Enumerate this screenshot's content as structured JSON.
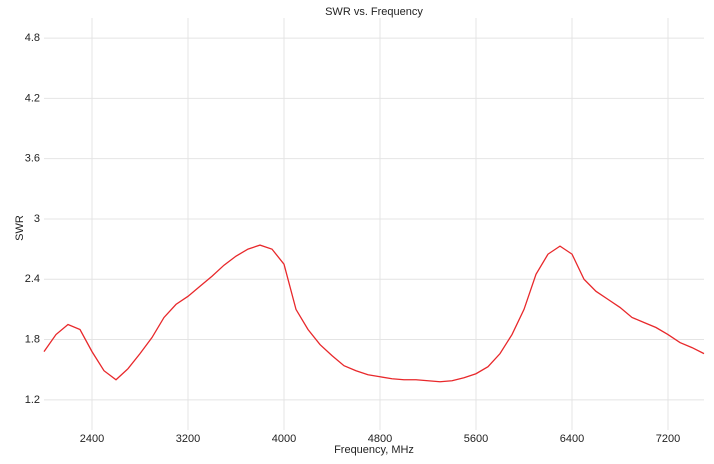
{
  "chart_data": {
    "type": "line",
    "title": "SWR vs. Frequency",
    "x_label": "Frequency, MHz",
    "y_label": "SWR",
    "x": [
      2000,
      2100,
      2200,
      2300,
      2400,
      2500,
      2600,
      2700,
      2800,
      2900,
      3000,
      3100,
      3200,
      3300,
      3400,
      3500,
      3600,
      3700,
      3800,
      3900,
      4000,
      4100,
      4200,
      4300,
      4400,
      4500,
      4600,
      4700,
      4800,
      4900,
      5000,
      5100,
      5200,
      5300,
      5400,
      5500,
      5600,
      5700,
      5800,
      5900,
      6000,
      6100,
      6200,
      6300,
      6400,
      6500,
      6600,
      6700,
      6800,
      6900,
      7000,
      7100,
      7200,
      7300,
      7400,
      7500
    ],
    "series": [
      {
        "name": "SWR",
        "color": "#e8282b",
        "values": [
          1.68,
          1.85,
          1.95,
          1.9,
          1.68,
          1.49,
          1.4,
          1.51,
          1.66,
          1.82,
          2.02,
          2.15,
          2.23,
          2.33,
          2.43,
          2.54,
          2.63,
          2.7,
          2.74,
          2.7,
          2.55,
          2.1,
          1.9,
          1.75,
          1.64,
          1.54,
          1.49,
          1.45,
          1.43,
          1.41,
          1.4,
          1.4,
          1.39,
          1.38,
          1.39,
          1.42,
          1.46,
          1.53,
          1.66,
          1.85,
          2.1,
          2.45,
          2.65,
          2.73,
          2.65,
          2.4,
          2.28,
          2.2,
          2.12,
          2.02,
          1.97,
          1.92,
          1.85,
          1.77,
          1.72,
          1.66
        ]
      }
    ],
    "xlim": [
      2000,
      7500
    ],
    "ylim": [
      0.9,
      5.0
    ],
    "xticks": [
      2400,
      3200,
      4000,
      4800,
      5600,
      6400,
      7200
    ],
    "yticks": [
      1.2,
      1.8,
      2.4,
      3.0,
      3.6,
      4.2,
      4.8
    ],
    "grid": true
  }
}
